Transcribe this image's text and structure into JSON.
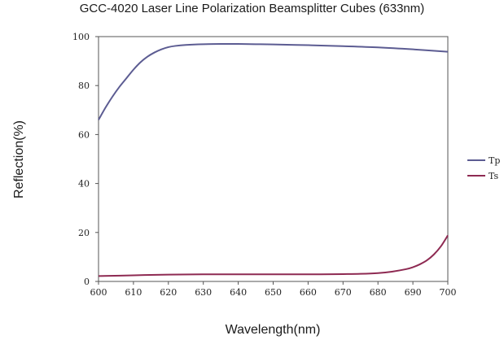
{
  "chart_data": {
    "type": "line",
    "title": "GCC-4020 Laser Line Polarization Beamsplitter Cubes (633nm)",
    "xlabel": "Wavelength(nm)",
    "ylabel": "Reflection(%)",
    "xlim": [
      600,
      700
    ],
    "ylim": [
      0,
      100
    ],
    "x_ticks": [
      600,
      610,
      620,
      630,
      640,
      650,
      660,
      670,
      680,
      690,
      700
    ],
    "y_ticks": [
      0,
      20,
      40,
      60,
      80,
      100
    ],
    "grid": false,
    "legend_position": "right",
    "series": [
      {
        "name": "Tp",
        "color": "#5c5c92",
        "x": [
          600,
          602,
          604,
          606,
          608,
          610,
          612,
          614,
          616,
          618,
          620,
          622,
          625,
          630,
          635,
          640,
          645,
          650,
          660,
          670,
          680,
          690,
          700
        ],
        "y": [
          66,
          71,
          75.5,
          79.5,
          83,
          86.5,
          89.5,
          91.8,
          93.5,
          94.8,
          95.7,
          96.2,
          96.6,
          96.9,
          97.0,
          97.0,
          96.9,
          96.8,
          96.5,
          96.1,
          95.6,
          94.8,
          93.8
        ]
      },
      {
        "name": "Ts",
        "color": "#8e2a52",
        "x": [
          600,
          610,
          620,
          630,
          640,
          650,
          660,
          670,
          675,
          680,
          684,
          688,
          690,
          692,
          694,
          696,
          698,
          700
        ],
        "y": [
          2.2,
          2.5,
          2.8,
          2.9,
          2.9,
          2.9,
          2.9,
          3.0,
          3.1,
          3.4,
          4.0,
          5.0,
          5.8,
          7.0,
          8.6,
          11.0,
          14.3,
          18.8
        ]
      }
    ]
  }
}
